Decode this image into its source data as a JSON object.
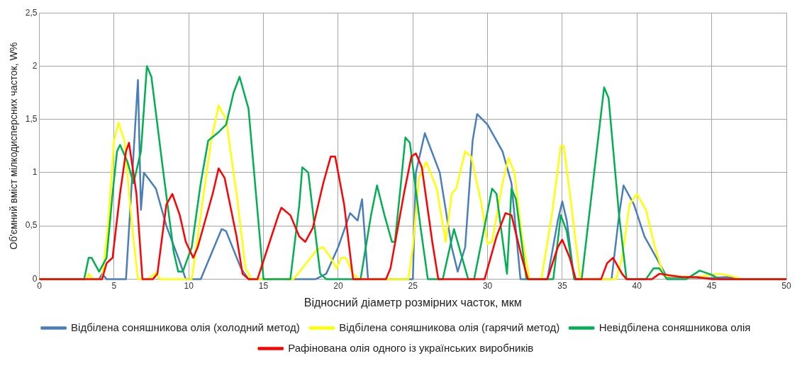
{
  "chart_data": {
    "type": "line",
    "xlabel": "Відносний діаметр розмірних часток, мкм",
    "ylabel": "Об'ємний вміст мілкодисперсних часток, W%",
    "xlim": [
      0,
      50
    ],
    "xticks": [
      0,
      5,
      10,
      15,
      20,
      25,
      30,
      35,
      40,
      45,
      50
    ],
    "ylim": [
      0,
      2.5
    ],
    "yticks": [
      0,
      {
        "value": 0.5,
        "label": "0,5"
      },
      1,
      {
        "value": 1.5,
        "label": "1,5"
      },
      2,
      {
        "value": 2.5,
        "label": "2,5"
      }
    ],
    "grid": true,
    "legend": "bottom",
    "series": [
      {
        "name": "Відбілена соняшникова олія (холодний метод)",
        "color": "#4a7ebb",
        "x": [
          4,
          4.2,
          4.5,
          5.8,
          6.6,
          6.8,
          7,
          7.8,
          8.5,
          9.3,
          9.8,
          10.8,
          12.2,
          12.5,
          13.5,
          14,
          18.5,
          19.2,
          20,
          20.8,
          21.3,
          21.6,
          22,
          25,
          25.2,
          25.8,
          26.8,
          27.6,
          28,
          28.5,
          29,
          29.3,
          30,
          31,
          31.6,
          32.2,
          34,
          34.7,
          35,
          35.3,
          35.8,
          38.3,
          38.8,
          39.1,
          39.8,
          40.5,
          41.3,
          42,
          45,
          46,
          47
        ],
        "values": [
          0,
          0.05,
          0,
          0,
          1.87,
          0.65,
          1,
          0.85,
          0.5,
          0.2,
          0,
          0,
          0.47,
          0.45,
          0.1,
          0,
          0,
          0.05,
          0.3,
          0.62,
          0.55,
          0.75,
          0,
          0,
          1,
          1.37,
          1,
          0.3,
          0.07,
          0.3,
          1.3,
          1.55,
          1.45,
          1.2,
          0.9,
          0,
          0,
          0.55,
          0.73,
          0.55,
          0,
          0,
          0.6,
          0.88,
          0.7,
          0.4,
          0.2,
          0.02,
          0.01,
          0.02,
          0
        ]
      },
      {
        "name": "Відбілена соняшникова олія (гарячий метод)",
        "color": "#ffff00",
        "x": [
          0,
          3.2,
          3.3,
          3.6,
          4.2,
          4.6,
          5,
          5.3,
          5.7,
          6.2,
          6.6,
          7.3,
          7.8,
          8.1,
          10.2,
          10.7,
          11.5,
          12,
          12.5,
          13.2,
          13.8,
          14.2,
          17,
          17.6,
          18.6,
          19,
          19.5,
          19.9,
          20.2,
          20.5,
          21,
          21.4,
          24.7,
          25,
          25.4,
          25.9,
          26.6,
          27.2,
          27.6,
          27.9,
          28.5,
          28.9,
          29.6,
          30,
          30.3,
          31,
          31.4,
          31.8,
          32.3,
          32.8,
          33.6,
          34.3,
          34.9,
          35.1,
          35.6,
          36.2,
          38.6,
          39,
          39.5,
          40,
          40.6,
          41.2,
          41.8,
          44,
          45.5,
          46.3,
          47,
          50
        ],
        "values": [
          0,
          0,
          0.05,
          0,
          0,
          0.5,
          1.3,
          1.47,
          1.3,
          0.5,
          0,
          0,
          0.06,
          0,
          0,
          0.5,
          1.3,
          1.63,
          1.5,
          0.8,
          0.1,
          0,
          0,
          0.1,
          0.28,
          0.3,
          0.2,
          0.1,
          0.2,
          0.2,
          0.05,
          0,
          0,
          0.3,
          0.95,
          1.1,
          0.85,
          0.35,
          0.8,
          0.85,
          1.2,
          1.15,
          0.7,
          0.33,
          0.35,
          0.9,
          1.14,
          1,
          0.4,
          0,
          0,
          0.6,
          1.25,
          1.25,
          0.7,
          0,
          0,
          0.2,
          0.7,
          0.8,
          0.65,
          0.3,
          0.03,
          0.02,
          0.05,
          0.03,
          0,
          0
        ]
      },
      {
        "name": "Невідбілена соняшникова олія",
        "color": "#00b050",
        "x": [
          0,
          3,
          3.3,
          3.5,
          4,
          4.5,
          4.9,
          5.2,
          5.4,
          5.9,
          6.3,
          6.8,
          7.2,
          7.5,
          8.3,
          9,
          9.3,
          9.6,
          10.2,
          10.8,
          11.3,
          12,
          12.5,
          13,
          13.4,
          14,
          14.5,
          15,
          16.8,
          17.4,
          17.6,
          18,
          18.5,
          18.8,
          19.2,
          21.5,
          22.2,
          22.6,
          23.1,
          23.6,
          23.8,
          24.2,
          24.5,
          24.8,
          25.5,
          26,
          27,
          27.75,
          28.7,
          29.1,
          30.3,
          30.6,
          31.3,
          31.6,
          31.9,
          32.6,
          34.4,
          34.9,
          35.3,
          35.8,
          36.3,
          37.3,
          37.8,
          38.1,
          38.8,
          39.3,
          40.6,
          41.1,
          41.5,
          42,
          43.3,
          44.2,
          45,
          45.5,
          50
        ],
        "values": [
          0,
          0,
          0.2,
          0.2,
          0.07,
          0.2,
          0.8,
          1.2,
          1.26,
          1.1,
          0.9,
          1.2,
          2,
          1.9,
          1,
          0.25,
          0.07,
          0.07,
          0.3,
          0.9,
          1.3,
          1.38,
          1.45,
          1.75,
          1.9,
          1.6,
          0.8,
          0,
          0,
          0.7,
          1.05,
          1,
          0.4,
          0.05,
          0,
          0,
          0.6,
          0.88,
          0.6,
          0.35,
          0.35,
          0.9,
          1.33,
          1.28,
          0.5,
          0,
          0,
          0.47,
          0,
          0,
          0.85,
          0.8,
          0.05,
          0.85,
          0.75,
          0,
          0,
          0.6,
          0.45,
          0,
          0,
          1.2,
          1.8,
          1.7,
          0.6,
          0,
          0,
          0.1,
          0.1,
          0,
          0,
          0.08,
          0.04,
          0,
          0
        ]
      },
      {
        "name": "Рафінована олія одного із українських виробників",
        "color": "#ff0000",
        "x": [
          0,
          4.2,
          4.5,
          4.9,
          5.4,
          5.8,
          6,
          6.5,
          6.9,
          7.6,
          7.9,
          8.5,
          8.9,
          9.4,
          9.8,
          10.3,
          10.6,
          11.6,
          12,
          12.4,
          13.2,
          13.6,
          14,
          14.6,
          15.3,
          16,
          16.2,
          16.8,
          17.4,
          17.8,
          18.3,
          19,
          19.5,
          19.8,
          20.4,
          21,
          23.2,
          23.5,
          24.4,
          24.9,
          25.2,
          25.6,
          26.3,
          26.7,
          29.8,
          30.6,
          31.2,
          31.6,
          32.3,
          32.7,
          34,
          34.7,
          35,
          35.5,
          35.9,
          37.6,
          38,
          38.4,
          39,
          39.3,
          41,
          41.5,
          43,
          44,
          45,
          50
        ],
        "values": [
          0,
          0,
          0.15,
          0.2,
          0.8,
          1.2,
          1.28,
          0.8,
          0,
          0,
          0.05,
          0.7,
          0.8,
          0.6,
          0.35,
          0.2,
          0.3,
          0.8,
          1.04,
          0.95,
          0.4,
          0.05,
          0,
          0,
          0.3,
          0.6,
          0.67,
          0.6,
          0.4,
          0.35,
          0.48,
          0.9,
          1.15,
          1.15,
          0.7,
          0,
          0,
          0.1,
          0.8,
          1.15,
          1.18,
          1.05,
          0.35,
          0,
          0,
          0.4,
          0.62,
          0.6,
          0.2,
          0,
          0,
          0.3,
          0.37,
          0.2,
          0,
          0,
          0.15,
          0.2,
          0.05,
          0,
          0,
          0.05,
          0.02,
          0.02,
          0,
          0
        ]
      }
    ]
  }
}
